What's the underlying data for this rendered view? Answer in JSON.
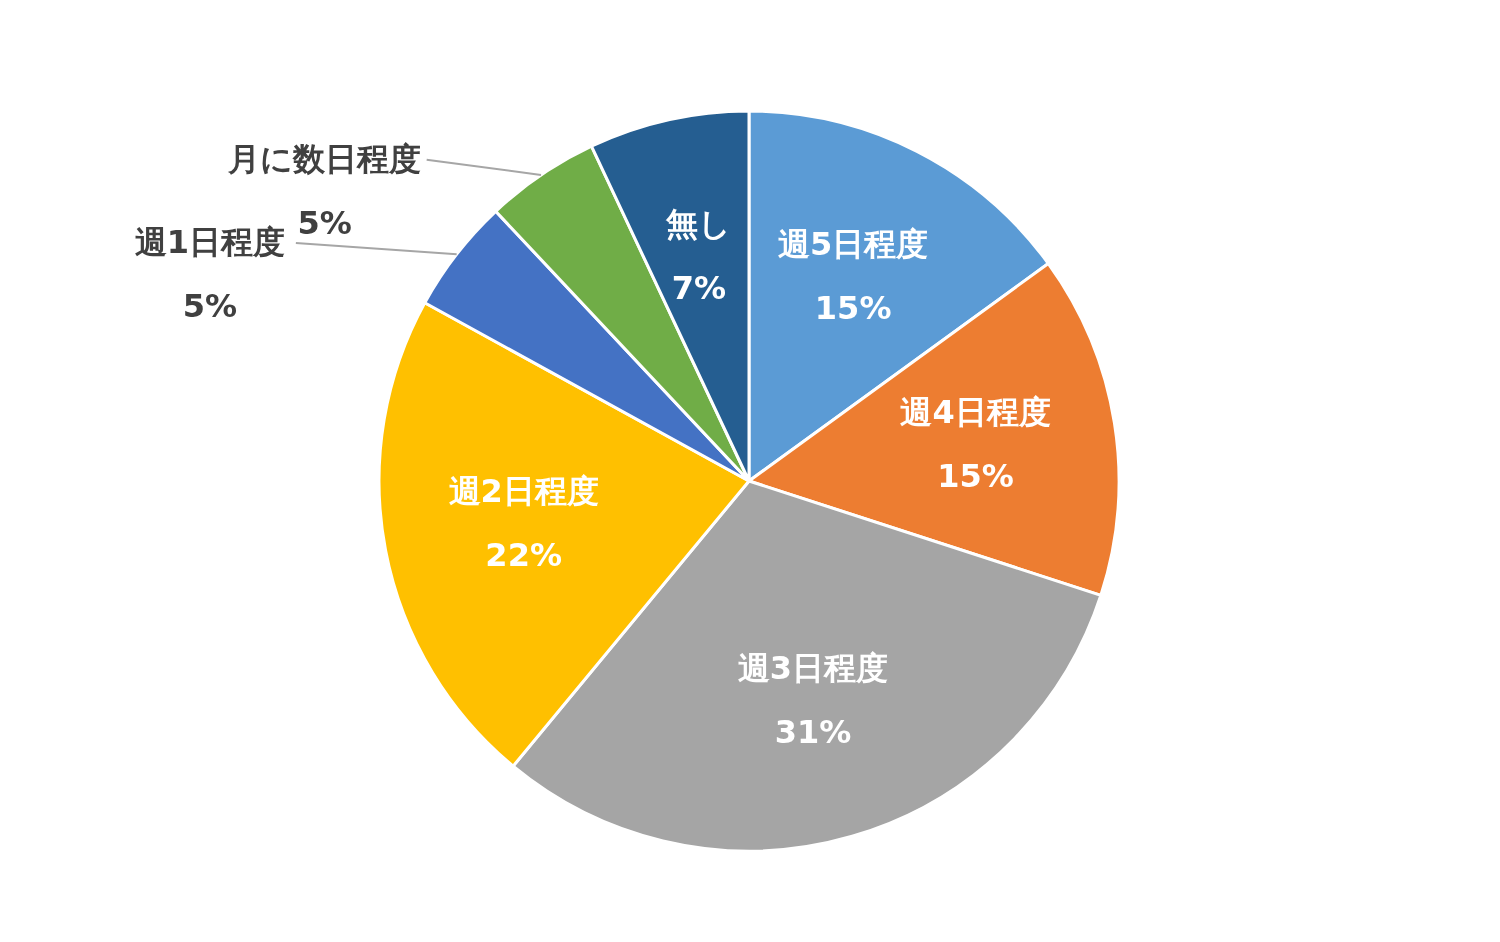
{
  "chart_data": {
    "type": "pie",
    "categories": [
      "週5日程度",
      "週4日程度",
      "週3日程度",
      "週2日程度",
      "週1日程度",
      "月に数日程度",
      "無し"
    ],
    "values": [
      15,
      15,
      31,
      22,
      5,
      5,
      7
    ],
    "value_labels": [
      "15%",
      "15%",
      "31%",
      "22%",
      "5%",
      "5%",
      "7%"
    ],
    "colors": [
      "#5b9bd5",
      "#ed7d31",
      "#a5a5a5",
      "#ffc000",
      "#4472c4",
      "#70ad47",
      "#255e91"
    ]
  }
}
